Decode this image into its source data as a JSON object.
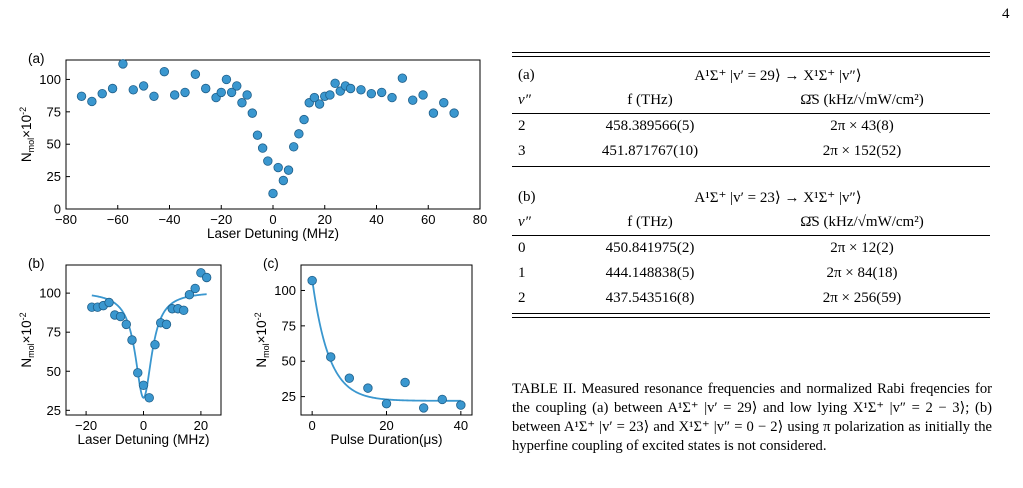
{
  "page_number": "4",
  "chart_data": [
    {
      "type": "scatter",
      "panel": "(a)",
      "xlabel": "Laser Detuning (MHz)",
      "ylabel": "N_mol×10^-2",
      "xlim": [
        -80,
        80
      ],
      "ylim": [
        0,
        115
      ],
      "xticks": [
        -80,
        -60,
        -40,
        -20,
        0,
        20,
        40,
        60,
        80
      ],
      "yticks": [
        0,
        25,
        50,
        75,
        100
      ],
      "x": [
        -74,
        -70,
        -66,
        -62,
        -58,
        -54,
        -50,
        -46,
        -42,
        -38,
        -34,
        -30,
        -26,
        -22,
        -20,
        -18,
        -16,
        -14,
        -12,
        -10,
        -8,
        -6,
        -4,
        -2,
        0,
        2,
        4,
        6,
        8,
        10,
        12,
        14,
        16,
        18,
        20,
        22,
        24,
        26,
        28,
        30,
        34,
        38,
        42,
        46,
        50,
        54,
        58,
        62,
        66,
        70
      ],
      "y": [
        87,
        83,
        89,
        93,
        112,
        92,
        95,
        87,
        106,
        88,
        90,
        104,
        93,
        86,
        90,
        100,
        90,
        95,
        82,
        88,
        74,
        57,
        47,
        37,
        12,
        32,
        22,
        30,
        48,
        58,
        69,
        82,
        86,
        81,
        87,
        88,
        97,
        91,
        95,
        93,
        92,
        89,
        90,
        86,
        101,
        84,
        88,
        74,
        82,
        74
      ]
    },
    {
      "type": "scatter",
      "panel": "(b)",
      "xlabel": "Laser Detuning (MHz)",
      "ylabel": "N_mol×10^-2",
      "xlim": [
        -27,
        27
      ],
      "ylim": [
        22,
        118
      ],
      "xticks": [
        -20,
        0,
        20
      ],
      "yticks": [
        25,
        50,
        75,
        100
      ],
      "x": [
        -18,
        -16,
        -14,
        -12,
        -10,
        -8,
        -6,
        -4,
        -2,
        0,
        2,
        4,
        6,
        8,
        10,
        12,
        14,
        16,
        18,
        20,
        22
      ],
      "y": [
        91,
        91,
        92,
        94,
        86,
        85,
        80,
        70,
        49,
        41,
        33,
        67,
        81,
        80,
        90,
        90,
        89,
        99,
        103,
        113,
        110
      ],
      "fit_center": 0,
      "fit_width": 3.5,
      "fit_baseline": 101,
      "fit_depth": 68
    },
    {
      "type": "scatter",
      "panel": "(c)",
      "xlabel": "Pulse Duration(μs)",
      "ylabel": "N_mol×10^-2",
      "xlim": [
        -3,
        43
      ],
      "ylim": [
        12,
        118
      ],
      "xticks": [
        0,
        20,
        40
      ],
      "yticks": [
        25,
        50,
        75,
        100
      ],
      "x": [
        0,
        5,
        10,
        15,
        20,
        25,
        30,
        35,
        40
      ],
      "y": [
        107,
        53,
        38,
        31,
        20,
        35,
        17,
        23,
        19
      ],
      "fit_A": 86,
      "fit_tau": 4.5,
      "fit_c": 22
    }
  ],
  "table": {
    "section_a": {
      "label": "(a)",
      "transition": "A¹Σ⁺ |v′ = 29⟩ → X¹Σ⁺ |v″⟩",
      "headers": [
        "v″",
        "f (THz)",
        "Ω̄S (kHz/√mW/cm²)"
      ],
      "rows": [
        [
          "2",
          "458.389566(5)",
          "2π × 43(8)"
        ],
        [
          "3",
          "451.871767(10)",
          "2π × 152(52)"
        ]
      ]
    },
    "section_b": {
      "label": "(b)",
      "transition": "A¹Σ⁺ |v′ = 23⟩ → X¹Σ⁺ |v″⟩",
      "headers": [
        "v″",
        "f (THz)",
        "Ω̄S (kHz/√mW/cm²)"
      ],
      "rows": [
        [
          "0",
          "450.841975(2)",
          "2π × 12(2)"
        ],
        [
          "1",
          "444.148838(5)",
          "2π × 84(18)"
        ],
        [
          "2",
          "437.543516(8)",
          "2π × 256(59)"
        ]
      ]
    },
    "caption": "TABLE II. Measured resonance frequencies and normalized Rabi freqencies for the coupling (a) between A¹Σ⁺ |v′ = 29⟩ and low lying X¹Σ⁺ |v″ = 2 − 3⟩; (b) between A¹Σ⁺ |v′ = 23⟩ and X¹Σ⁺ |v″ = 0 − 2⟩ using π polarization as initially the hyperfine coupling of excited states is not considered."
  },
  "colors": {
    "marker": "#3a97cf",
    "marker_edge": "#1f5f8a",
    "fit": "#3a97cf"
  }
}
